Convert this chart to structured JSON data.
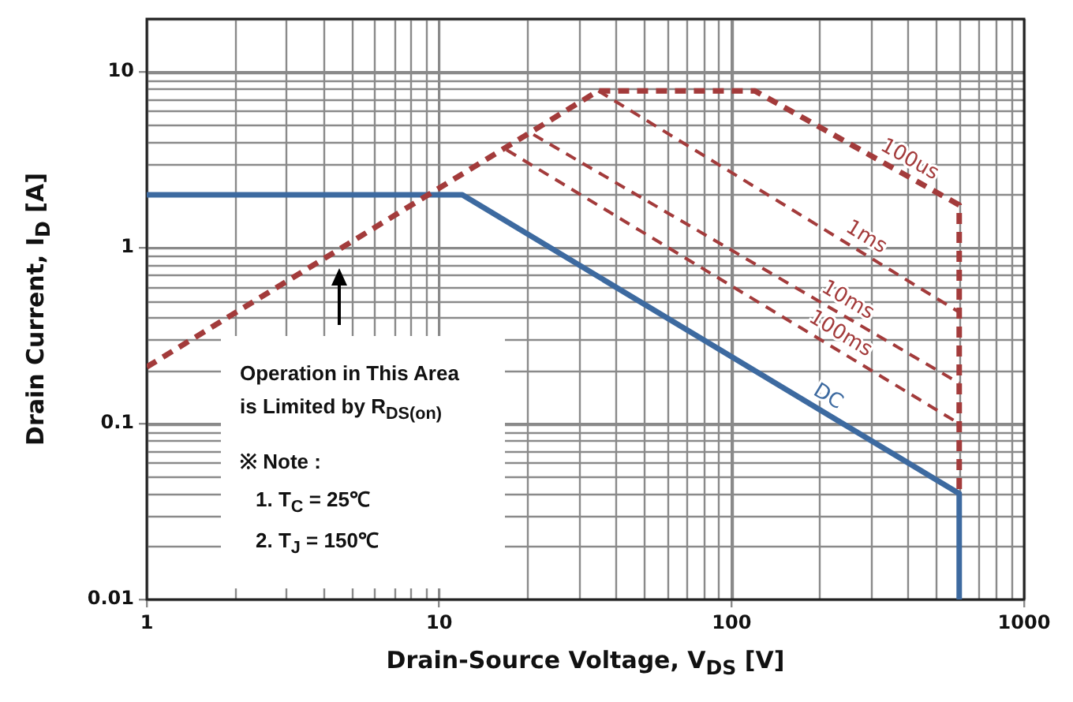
{
  "chart_data": {
    "type": "line",
    "xlabel": "Drain-Source Voltage, V$_{DS}$ [V]",
    "ylabel": "Drain Current, I$_{D}$ [A]",
    "log": "xy",
    "grid": true,
    "legend": false,
    "marker": "none",
    "xlim": [
      1,
      1000
    ],
    "xticks": [
      1,
      10,
      100,
      1000
    ],
    "ylim": [
      0.01,
      20
    ],
    "yticks": [
      0.01,
      0.1,
      1,
      10
    ],
    "series": [
      {
        "name": "100us",
        "color": "#a33b3b",
        "line_style": "dashed",
        "x": [
          1,
          35,
          120,
          600,
          600
        ],
        "values": [
          0.21,
          7.8,
          7.8,
          1.75,
          0.04
        ]
      },
      {
        "name": "1ms",
        "color": "#a33b3b",
        "line_style": "dashed",
        "x": [
          35,
          600
        ],
        "values": [
          7.8,
          0.43
        ]
      },
      {
        "name": "10ms",
        "color": "#a33b3b",
        "line_style": "dashed",
        "x": [
          21,
          600
        ],
        "values": [
          4.4,
          0.17
        ]
      },
      {
        "name": "100ms",
        "color": "#a33b3b",
        "line_style": "dashed",
        "x": [
          17,
          600
        ],
        "values": [
          3.6,
          0.1
        ]
      },
      {
        "name": "DC",
        "color": "#3d6aa0",
        "line_style": "solid",
        "x": [
          1,
          12,
          600,
          600
        ],
        "values": [
          2,
          2,
          0.04,
          0.01
        ]
      }
    ],
    "annotations": [
      "Operation in This Area",
      "is Limited by R$_{DS(on)}$",
      "※ Note :",
      "1. T$_{C}$ = 25℃",
      "2. T$_{J}$ = 150℃"
    ]
  }
}
